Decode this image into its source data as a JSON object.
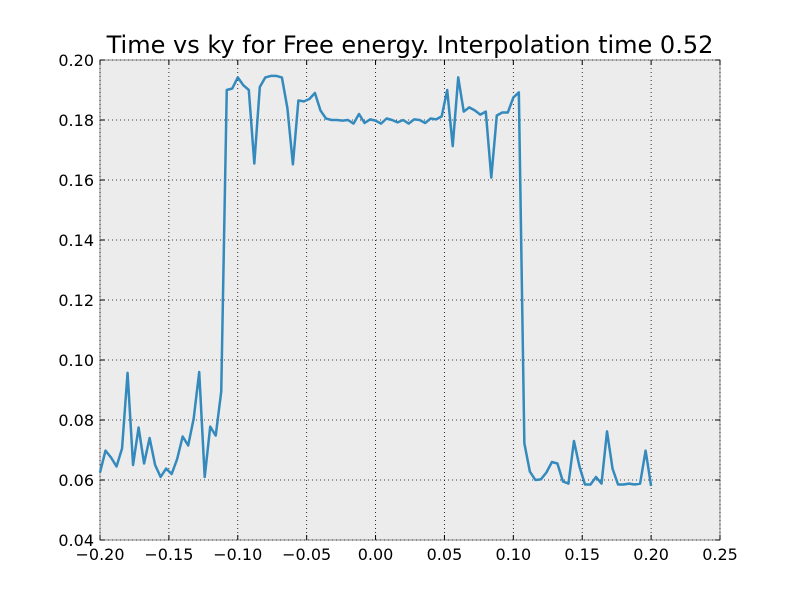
{
  "chart_data": {
    "type": "line",
    "title": "Time vs ky for Free energy. Interpolation time 0.52",
    "xlabel": "",
    "ylabel": "",
    "xlim": [
      -0.2,
      0.25
    ],
    "ylim": [
      0.04,
      0.2
    ],
    "xticks": [
      -0.2,
      -0.15,
      -0.1,
      -0.05,
      0.0,
      0.05,
      0.1,
      0.15,
      0.2,
      0.25
    ],
    "xtick_labels": [
      "−0.20",
      "−0.15",
      "−0.10",
      "−0.05",
      "0.00",
      "0.05",
      "0.10",
      "0.15",
      "0.20",
      "0.25"
    ],
    "yticks": [
      0.04,
      0.06,
      0.08,
      0.1,
      0.12,
      0.14,
      0.16,
      0.18,
      0.2
    ],
    "ytick_labels": [
      "0.04",
      "0.06",
      "0.08",
      "0.10",
      "0.12",
      "0.14",
      "0.16",
      "0.18",
      "0.20"
    ],
    "grid": true,
    "series": [
      {
        "name": "free energy",
        "color": "#348abd",
        "x": [
          -0.2,
          -0.196,
          -0.192,
          -0.188,
          -0.184,
          -0.18,
          -0.176,
          -0.172,
          -0.168,
          -0.164,
          -0.16,
          -0.156,
          -0.152,
          -0.148,
          -0.144,
          -0.14,
          -0.136,
          -0.132,
          -0.128,
          -0.124,
          -0.12,
          -0.116,
          -0.112,
          -0.108,
          -0.104,
          -0.1,
          -0.096,
          -0.092,
          -0.088,
          -0.084,
          -0.08,
          -0.076,
          -0.072,
          -0.068,
          -0.064,
          -0.06,
          -0.056,
          -0.052,
          -0.048,
          -0.044,
          -0.04,
          -0.036,
          -0.032,
          -0.028,
          -0.024,
          -0.02,
          -0.016,
          -0.012,
          -0.008,
          -0.004,
          0.0,
          0.004,
          0.008,
          0.012,
          0.016,
          0.02,
          0.024,
          0.028,
          0.032,
          0.036,
          0.04,
          0.044,
          0.048,
          0.052,
          0.056,
          0.06,
          0.064,
          0.068,
          0.072,
          0.076,
          0.08,
          0.084,
          0.088,
          0.092,
          0.096,
          0.1,
          0.104,
          0.108,
          0.112,
          0.116,
          0.12,
          0.124,
          0.128,
          0.132,
          0.136,
          0.14,
          0.144,
          0.148,
          0.152,
          0.156,
          0.16,
          0.164,
          0.168,
          0.172,
          0.176,
          0.18,
          0.184,
          0.188,
          0.192,
          0.196,
          0.2
        ],
        "y": [
          0.0625,
          0.0698,
          0.0675,
          0.0645,
          0.0705,
          0.0957,
          0.065,
          0.0775,
          0.0655,
          0.074,
          0.065,
          0.061,
          0.0638,
          0.062,
          0.067,
          0.0745,
          0.0715,
          0.0805,
          0.096,
          0.061,
          0.0778,
          0.0748,
          0.0895,
          0.19,
          0.1905,
          0.1942,
          0.1916,
          0.19,
          0.1655,
          0.191,
          0.1942,
          0.1947,
          0.1947,
          0.1942,
          0.184,
          0.1652,
          0.1865,
          0.1862,
          0.187,
          0.189,
          0.1832,
          0.1805,
          0.18,
          0.18,
          0.1798,
          0.18,
          0.1788,
          0.182,
          0.179,
          0.1802,
          0.1798,
          0.1788,
          0.1805,
          0.18,
          0.1792,
          0.18,
          0.1788,
          0.1802,
          0.18,
          0.179,
          0.1805,
          0.1802,
          0.1812,
          0.19,
          0.1713,
          0.1942,
          0.1828,
          0.1842,
          0.1832,
          0.1818,
          0.1828,
          0.1608,
          0.1815,
          0.1825,
          0.1825,
          0.1875,
          0.1892,
          0.0722,
          0.0628,
          0.06,
          0.0602,
          0.0625,
          0.066,
          0.0655,
          0.0595,
          0.0588,
          0.073,
          0.0645,
          0.0585,
          0.0585,
          0.061,
          0.0588,
          0.0762,
          0.0638,
          0.0585,
          0.0585,
          0.0588,
          0.0585,
          0.0588,
          0.0698,
          0.058
        ]
      }
    ]
  }
}
